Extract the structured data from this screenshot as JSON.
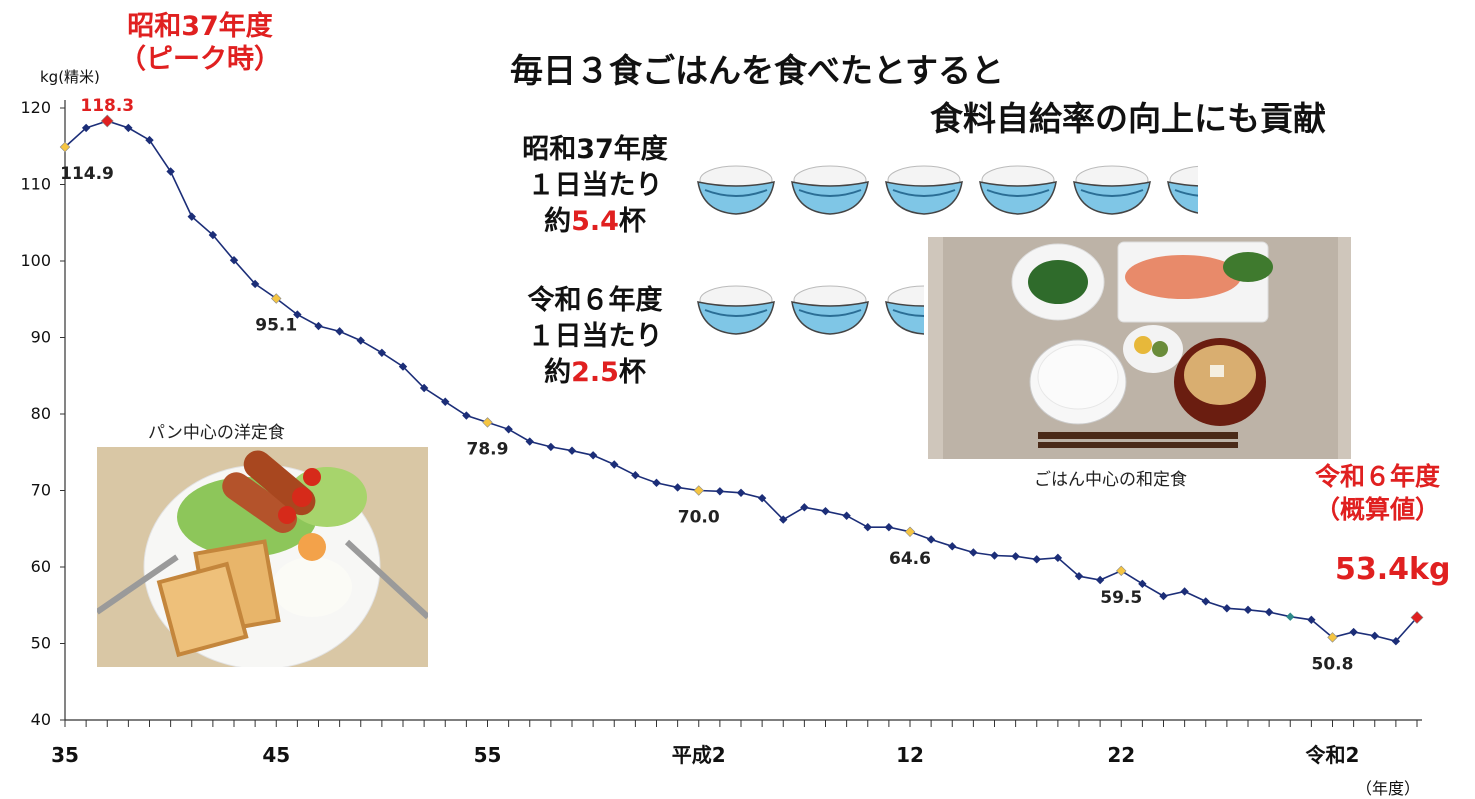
{
  "headline": {
    "line1": "毎日３食ごはんを食べたとすると",
    "line2": "食料自給率の向上にも貢献"
  },
  "peak_label": {
    "line1": "昭和37年度",
    "line2": "（ピーク時）"
  },
  "latest_label": {
    "line1": "令和６年度",
    "line2": "（概算値）",
    "value": "53.4kg"
  },
  "stat_showa": {
    "line1": "昭和37年度",
    "line2": "１日当たり",
    "prefix": "約",
    "amount": "5.4",
    "suffix": "杯",
    "bowls": 5.4
  },
  "stat_reiwa": {
    "line1": "令和６年度",
    "line2": "１日当たり",
    "prefix": "約",
    "amount": "2.5",
    "suffix": "杯",
    "bowls": 2.5
  },
  "photos": {
    "western_caption": "パン中心の洋定食",
    "japanese_caption": "ごはん中心の和定食"
  },
  "colors": {
    "line": "#1c2e78",
    "highlight_red": "#e02020",
    "marker_yellow": "#f5c542",
    "marker_teal": "#2e8a8a",
    "bowl_blue": "#7fc6e6"
  },
  "chart_data": {
    "type": "line",
    "yaxis_unit": "kg(精米)",
    "xaxis_unit": "（年度）",
    "ylim": [
      40,
      120
    ],
    "yticks": [
      40,
      50,
      60,
      70,
      80,
      90,
      100,
      110,
      120
    ],
    "xtick_labels": [
      {
        "label": "35",
        "index": 0
      },
      {
        "label": "45",
        "index": 10
      },
      {
        "label": "55",
        "index": 20
      },
      {
        "label": "平成2",
        "index": 30
      },
      {
        "label": "12",
        "index": 40
      },
      {
        "label": "22",
        "index": 50
      },
      {
        "label": "令和2",
        "index": 60
      }
    ],
    "series": [
      {
        "values": [
          114.9,
          117.4,
          118.3,
          117.4,
          115.8,
          111.7,
          105.8,
          103.4,
          100.1,
          97.0,
          95.1,
          93.0,
          91.5,
          90.8,
          89.6,
          88.0,
          86.2,
          83.4,
          81.6,
          79.8,
          78.9,
          78.0,
          76.4,
          75.7,
          75.2,
          74.6,
          73.4,
          72.0,
          71.0,
          70.4,
          70.0,
          69.9,
          69.7,
          69.0,
          66.2,
          67.8,
          67.3,
          66.7,
          65.2,
          65.2,
          64.6,
          63.6,
          62.7,
          61.9,
          61.5,
          61.4,
          61.0,
          61.2,
          58.8,
          58.3,
          59.5,
          57.8,
          56.2,
          56.8,
          55.5,
          54.6,
          54.4,
          54.1,
          53.5,
          53.1,
          50.8,
          51.5,
          51.0,
          50.3,
          53.4
        ]
      }
    ],
    "labeled_points": [
      {
        "index": 2,
        "value": "118.3",
        "color": "red"
      },
      {
        "index": 0,
        "value": "114.9",
        "color": "yellow"
      },
      {
        "index": 10,
        "value": "95.1",
        "color": "yellow"
      },
      {
        "index": 20,
        "value": "78.9",
        "color": "yellow"
      },
      {
        "index": 30,
        "value": "70.0",
        "color": "yellow"
      },
      {
        "index": 40,
        "value": "64.6",
        "color": "yellow"
      },
      {
        "index": 50,
        "value": "59.5",
        "color": "yellow"
      },
      {
        "index": 60,
        "value": "50.8",
        "color": "yellow"
      },
      {
        "index": 64,
        "value": "",
        "color": "red"
      }
    ]
  }
}
